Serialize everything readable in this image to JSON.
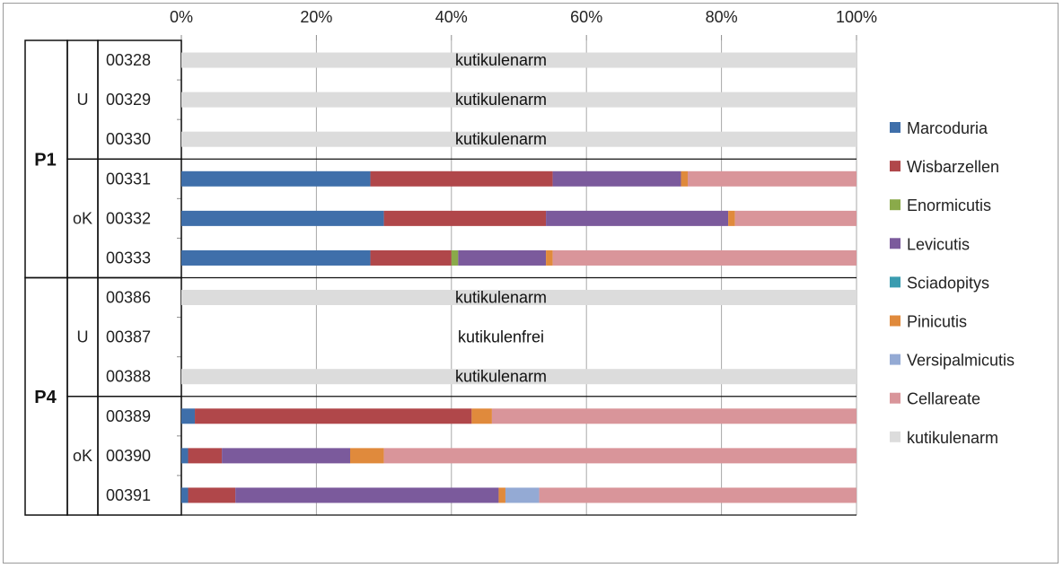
{
  "chart_data": {
    "type": "bar",
    "orientation": "horizontal",
    "stacked": "percent",
    "x_ticks": [
      "0%",
      "20%",
      "40%",
      "60%",
      "80%",
      "100%"
    ],
    "xlim": [
      0,
      100
    ],
    "legend_position": "right",
    "groups": [
      {
        "label": "P1",
        "subgroups": [
          {
            "label": "U",
            "rows": 3
          },
          {
            "label": "oK",
            "rows": 3
          }
        ]
      },
      {
        "label": "P4",
        "subgroups": [
          {
            "label": "U",
            "rows": 3
          },
          {
            "label": "oK",
            "rows": 3
          }
        ]
      }
    ],
    "series": [
      {
        "name": "Marcoduria",
        "color": "#3f6faa"
      },
      {
        "name": "Wisbarzellen",
        "color": "#b0474a"
      },
      {
        "name": "Enormicutis",
        "color": "#8aaa4a"
      },
      {
        "name": "Levicutis",
        "color": "#7b5a9c"
      },
      {
        "name": "Sciadopitys",
        "color": "#3a9cb0"
      },
      {
        "name": "Pinicutis",
        "color": "#e08a3c"
      },
      {
        "name": "Versipalmicutis",
        "color": "#94aad4"
      },
      {
        "name": "Cellareate",
        "color": "#d9959a"
      },
      {
        "name": "kutikulenarm",
        "color": "#dcdcdc"
      }
    ],
    "rows": [
      {
        "label": "00328",
        "values": [
          0,
          0,
          0,
          0,
          0,
          0,
          0,
          0,
          100
        ],
        "status": "kutikulenarm"
      },
      {
        "label": "00329",
        "values": [
          0,
          0,
          0,
          0,
          0,
          0,
          0,
          0,
          100
        ],
        "status": "kutikulenarm"
      },
      {
        "label": "00330",
        "values": [
          0,
          0,
          0,
          0,
          0,
          0,
          0,
          0,
          100
        ],
        "status": "kutikulenarm"
      },
      {
        "label": "00331",
        "values": [
          28,
          27,
          0,
          19,
          0,
          1,
          0,
          25,
          0
        ],
        "status": ""
      },
      {
        "label": "00332",
        "values": [
          30,
          24,
          0,
          27,
          0,
          1,
          0,
          18,
          0
        ],
        "status": ""
      },
      {
        "label": "00333",
        "values": [
          28,
          12,
          1,
          13,
          0,
          1,
          0,
          45,
          0
        ],
        "status": ""
      },
      {
        "label": "00386",
        "values": [
          0,
          0,
          0,
          0,
          0,
          0,
          0,
          0,
          100
        ],
        "status": "kutikulenarm"
      },
      {
        "label": "00387",
        "values": [
          0,
          0,
          0,
          0,
          0,
          0,
          0,
          0,
          0
        ],
        "status": "kutikulenfrei"
      },
      {
        "label": "00388",
        "values": [
          0,
          0,
          0,
          0,
          0,
          0,
          0,
          0,
          100
        ],
        "status": "kutikulenarm"
      },
      {
        "label": "00389",
        "values": [
          2,
          41,
          0,
          0,
          0,
          3,
          0,
          54,
          0
        ],
        "status": ""
      },
      {
        "label": "00390",
        "values": [
          1,
          5,
          0,
          19,
          0,
          5,
          0,
          70,
          0
        ],
        "status": ""
      },
      {
        "label": "00391",
        "values": [
          1,
          7,
          0,
          39,
          0,
          1,
          5,
          47,
          0
        ],
        "status": ""
      }
    ]
  }
}
